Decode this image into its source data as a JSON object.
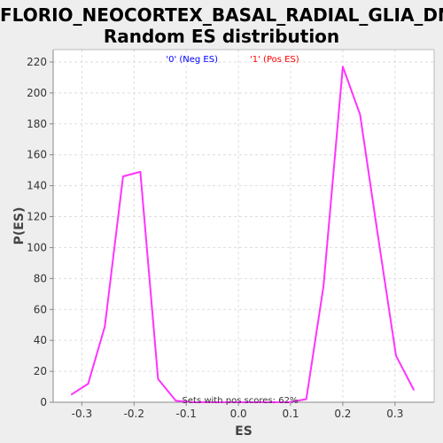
{
  "chart_data": {
    "type": "line",
    "title_line1": "FLORIO_NEOCORTEX_BASAL_RADIAL_GLIA_DN:",
    "title_line2": "Random ES distribution",
    "xlabel": "ES",
    "ylabel": "P(ES)",
    "xlim": [
      -0.355,
      0.375
    ],
    "ylim": [
      0,
      228
    ],
    "x_ticks": [
      -0.3,
      -0.2,
      -0.1,
      0.0,
      0.1,
      0.2,
      0.3
    ],
    "x_tick_labels": [
      "-0.3",
      "-0.2",
      "-0.1",
      "0.0",
      "0.1",
      "0.2",
      "0.3"
    ],
    "y_ticks": [
      0,
      20,
      40,
      60,
      80,
      100,
      120,
      140,
      160,
      180,
      200,
      220
    ],
    "y_tick_labels": [
      "0",
      "20",
      "40",
      "60",
      "80",
      "100",
      "120",
      "140",
      "160",
      "180",
      "200",
      "220"
    ],
    "grid": true,
    "legend": [
      {
        "label": "'0' (Neg ES)",
        "color": "#0000ff"
      },
      {
        "label": "'1' (Pos ES)",
        "color": "#ff0000"
      }
    ],
    "annotation": "Sets with pos scores: 62%",
    "series": [
      {
        "color": "#ff33ff",
        "x": [
          -0.32,
          -0.288,
          -0.256,
          -0.221,
          -0.188,
          -0.154,
          -0.12,
          -0.087,
          -0.054,
          -0.02,
          0.013,
          0.046,
          0.08,
          0.097,
          0.13,
          0.163,
          0.2,
          0.233,
          0.268,
          0.302,
          0.336
        ],
        "y": [
          5,
          12,
          49,
          146,
          149,
          15,
          1,
          0,
          0,
          0,
          0,
          0,
          0,
          0,
          2,
          75,
          217,
          186,
          106,
          30,
          8
        ]
      }
    ]
  }
}
